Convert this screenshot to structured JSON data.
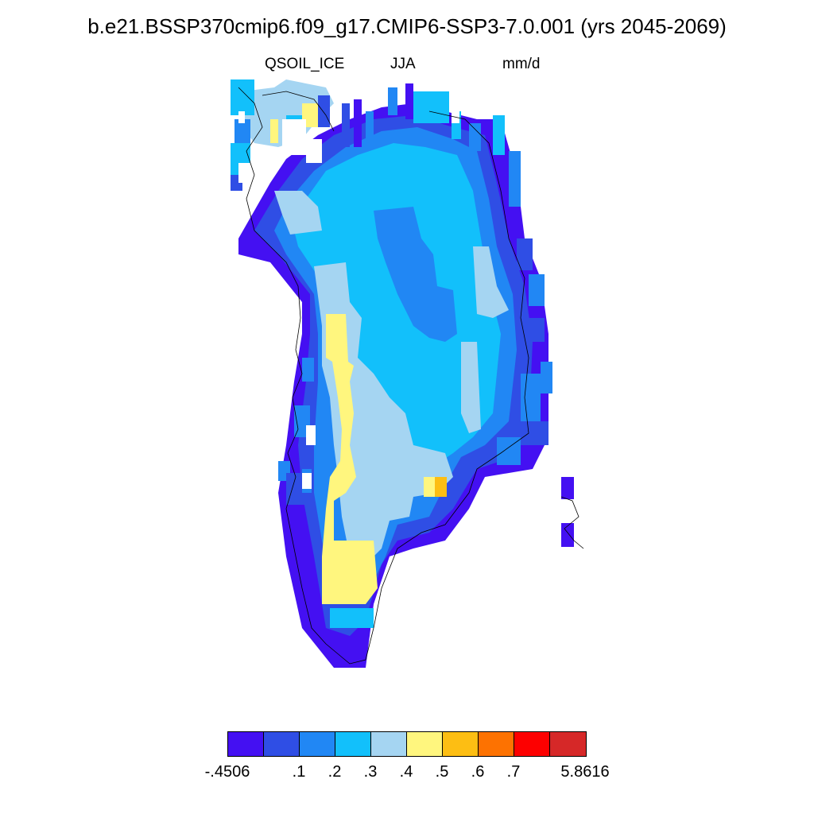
{
  "header": {
    "title": "b.e21.BSSP370cmip6.f09_g17.CMIP6-SSP3-7.0.001 (yrs 2045-2069)",
    "variable": "QSOIL_ICE",
    "season": "JJA",
    "units": "mm/d"
  },
  "colorbar": {
    "colors": [
      "#4410f2",
      "#2f4ee5",
      "#2187f4",
      "#12c0fb",
      "#a5d5f2",
      "#fff67e",
      "#fdbe13",
      "#fd7201",
      "#fd0000",
      "#d62828"
    ],
    "tick_labels": [
      "-.4506",
      ".1",
      ".2",
      ".3",
      ".4",
      ".5",
      ".6",
      ".7",
      "5.8616"
    ]
  }
}
